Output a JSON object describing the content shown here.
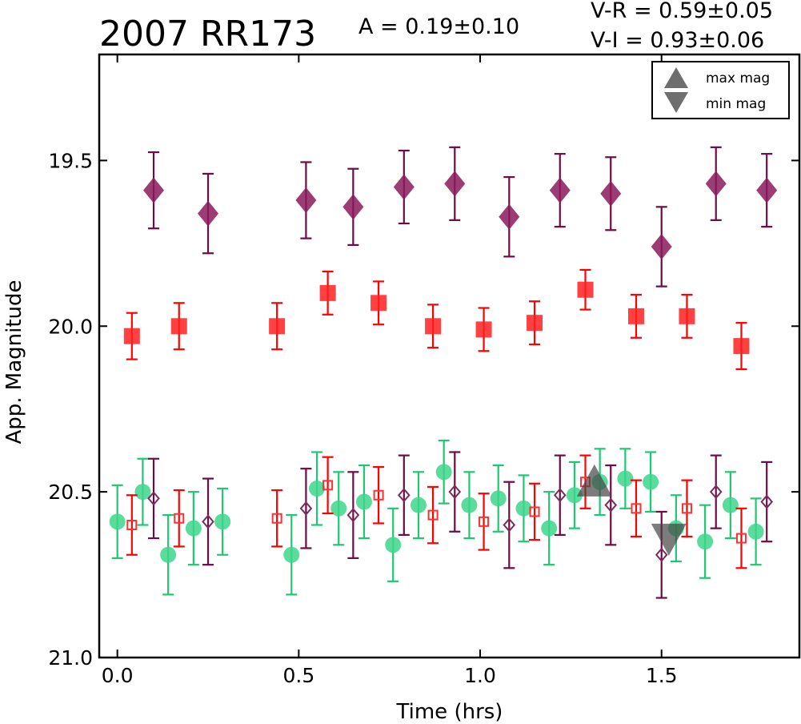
{
  "chart_data": {
    "type": "scatter",
    "title": "2007 RR173",
    "annotations": {
      "amplitude": "A  = 0.19±0.10",
      "v_r": "V-R = 0.59±0.05",
      "v_i": "V-I  = 0.93±0.06"
    },
    "xlabel": "Time (hrs)",
    "ylabel": "App. Magnitude",
    "xlim": [
      -0.05,
      1.88
    ],
    "ylim": [
      21.0,
      19.18
    ],
    "y_inverted": true,
    "xticks": [
      0.0,
      0.5,
      1.0,
      1.5
    ],
    "xtick_labels": [
      "0.0",
      "0.5",
      "1.0",
      "1.5"
    ],
    "yticks": [
      19.5,
      20.0,
      20.5,
      21.0
    ],
    "ytick_labels": [
      "19.5",
      "20.0",
      "20.5",
      "21.0"
    ],
    "grid": false,
    "legend": {
      "placement": "top-right",
      "entries": [
        {
          "label": "max mag",
          "marker": "triangle-up",
          "color": "#444444"
        },
        {
          "label": "min mag",
          "marker": "triangle-down",
          "color": "#444444"
        }
      ]
    },
    "series": [
      {
        "marker": "diamond",
        "filled": true,
        "color": "#8b1a5c",
        "errcolor": "#6e0a45",
        "points": [
          {
            "x": 0.1,
            "y": 19.59,
            "err": 0.115
          },
          {
            "x": 0.25,
            "y": 19.66,
            "err": 0.12
          },
          {
            "x": 0.52,
            "y": 19.62,
            "err": 0.115
          },
          {
            "x": 0.65,
            "y": 19.64,
            "err": 0.115
          },
          {
            "x": 0.79,
            "y": 19.58,
            "err": 0.11
          },
          {
            "x": 0.93,
            "y": 19.57,
            "err": 0.11
          },
          {
            "x": 1.08,
            "y": 19.67,
            "err": 0.12
          },
          {
            "x": 1.22,
            "y": 19.59,
            "err": 0.11
          },
          {
            "x": 1.36,
            "y": 19.6,
            "err": 0.11
          },
          {
            "x": 1.5,
            "y": 19.76,
            "err": 0.12
          },
          {
            "x": 1.65,
            "y": 19.57,
            "err": 0.11
          },
          {
            "x": 1.79,
            "y": 19.59,
            "err": 0.11
          }
        ]
      },
      {
        "marker": "square",
        "filled": true,
        "color": "#ff2020",
        "errcolor": "#ff0000",
        "points": [
          {
            "x": 0.04,
            "y": 20.03,
            "err": 0.07
          },
          {
            "x": 0.17,
            "y": 20.0,
            "err": 0.07
          },
          {
            "x": 0.44,
            "y": 20.0,
            "err": 0.07
          },
          {
            "x": 0.58,
            "y": 19.9,
            "err": 0.065
          },
          {
            "x": 0.72,
            "y": 19.93,
            "err": 0.065
          },
          {
            "x": 0.87,
            "y": 20.0,
            "err": 0.065
          },
          {
            "x": 1.01,
            "y": 20.01,
            "err": 0.065
          },
          {
            "x": 1.15,
            "y": 19.99,
            "err": 0.065
          },
          {
            "x": 1.29,
            "y": 19.89,
            "err": 0.06
          },
          {
            "x": 1.43,
            "y": 19.97,
            "err": 0.065
          },
          {
            "x": 1.57,
            "y": 19.97,
            "err": 0.065
          },
          {
            "x": 1.72,
            "y": 20.06,
            "err": 0.07
          }
        ]
      },
      {
        "marker": "circle",
        "filled": true,
        "color": "#3dd68c",
        "errcolor": "#1ec870",
        "points": [
          {
            "x": 0.0,
            "y": 20.59,
            "err": 0.11
          },
          {
            "x": 0.07,
            "y": 20.5,
            "err": 0.1
          },
          {
            "x": 0.14,
            "y": 20.69,
            "err": 0.12
          },
          {
            "x": 0.21,
            "y": 20.61,
            "err": 0.11
          },
          {
            "x": 0.29,
            "y": 20.59,
            "err": 0.1
          },
          {
            "x": 0.48,
            "y": 20.69,
            "err": 0.12
          },
          {
            "x": 0.55,
            "y": 20.49,
            "err": 0.11
          },
          {
            "x": 0.61,
            "y": 20.55,
            "err": 0.11
          },
          {
            "x": 0.68,
            "y": 20.53,
            "err": 0.11
          },
          {
            "x": 0.76,
            "y": 20.66,
            "err": 0.11
          },
          {
            "x": 0.83,
            "y": 20.54,
            "err": 0.1
          },
          {
            "x": 0.9,
            "y": 20.44,
            "err": 0.095
          },
          {
            "x": 0.97,
            "y": 20.54,
            "err": 0.1
          },
          {
            "x": 1.05,
            "y": 20.52,
            "err": 0.1
          },
          {
            "x": 1.12,
            "y": 20.55,
            "err": 0.1
          },
          {
            "x": 1.19,
            "y": 20.61,
            "err": 0.11
          },
          {
            "x": 1.26,
            "y": 20.51,
            "err": 0.1
          },
          {
            "x": 1.33,
            "y": 20.47,
            "err": 0.1
          },
          {
            "x": 1.4,
            "y": 20.46,
            "err": 0.09
          },
          {
            "x": 1.47,
            "y": 20.47,
            "err": 0.09
          },
          {
            "x": 1.54,
            "y": 20.61,
            "err": 0.1
          },
          {
            "x": 1.62,
            "y": 20.65,
            "err": 0.11
          },
          {
            "x": 1.69,
            "y": 20.54,
            "err": 0.1
          },
          {
            "x": 1.76,
            "y": 20.62,
            "err": 0.1
          }
        ]
      },
      {
        "marker": "square",
        "filled": false,
        "color": "#ff3030",
        "errcolor": "#ff0000",
        "points": [
          {
            "x": 0.04,
            "y": 20.6,
            "err": 0.09
          },
          {
            "x": 0.17,
            "y": 20.58,
            "err": 0.085
          },
          {
            "x": 0.44,
            "y": 20.58,
            "err": 0.085
          },
          {
            "x": 0.58,
            "y": 20.48,
            "err": 0.085
          },
          {
            "x": 0.72,
            "y": 20.51,
            "err": 0.085
          },
          {
            "x": 0.87,
            "y": 20.57,
            "err": 0.085
          },
          {
            "x": 1.01,
            "y": 20.59,
            "err": 0.085
          },
          {
            "x": 1.15,
            "y": 20.56,
            "err": 0.085
          },
          {
            "x": 1.29,
            "y": 20.47,
            "err": 0.08
          },
          {
            "x": 1.43,
            "y": 20.55,
            "err": 0.085
          },
          {
            "x": 1.57,
            "y": 20.55,
            "err": 0.085
          },
          {
            "x": 1.72,
            "y": 20.64,
            "err": 0.09
          }
        ]
      },
      {
        "marker": "diamond",
        "filled": false,
        "color": "#7a2a5c",
        "errcolor": "#6e0a45",
        "points": [
          {
            "x": 0.1,
            "y": 20.52,
            "err": 0.12
          },
          {
            "x": 0.25,
            "y": 20.59,
            "err": 0.13
          },
          {
            "x": 0.52,
            "y": 20.55,
            "err": 0.12
          },
          {
            "x": 0.65,
            "y": 20.57,
            "err": 0.13
          },
          {
            "x": 0.79,
            "y": 20.51,
            "err": 0.12
          },
          {
            "x": 0.93,
            "y": 20.5,
            "err": 0.12
          },
          {
            "x": 1.08,
            "y": 20.6,
            "err": 0.13
          },
          {
            "x": 1.22,
            "y": 20.51,
            "err": 0.12
          },
          {
            "x": 1.36,
            "y": 20.54,
            "err": 0.12
          },
          {
            "x": 1.5,
            "y": 20.69,
            "err": 0.13
          },
          {
            "x": 1.65,
            "y": 20.5,
            "err": 0.11
          },
          {
            "x": 1.79,
            "y": 20.53,
            "err": 0.12
          }
        ]
      }
    ],
    "extrema_markers": [
      {
        "kind": "max mag",
        "marker": "triangle-up",
        "x": 1.315,
        "y": 20.48,
        "color": "#444444"
      },
      {
        "kind": "min mag",
        "marker": "triangle-down",
        "x": 1.52,
        "y": 20.63,
        "color": "#444444"
      }
    ]
  }
}
